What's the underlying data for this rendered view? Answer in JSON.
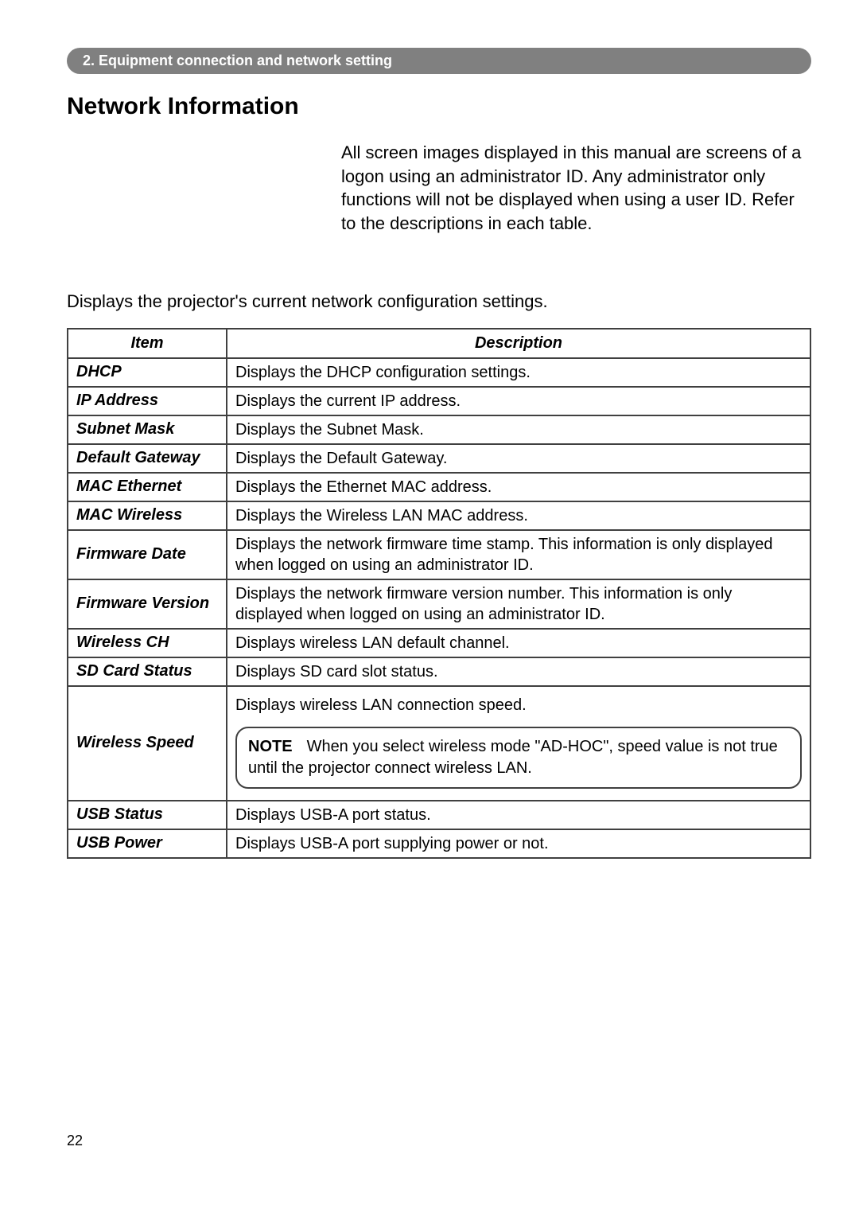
{
  "section_header": "2. Equipment connection and network setting",
  "title": "Network Information",
  "intro": "All screen images displayed in this manual are screens of a logon using an administrator ID. Any administrator only functions will not be displayed when using a user ID. Refer to the descriptions in each table.",
  "subtitle": "Displays the projector's current network configuration settings.",
  "table": {
    "headers": {
      "item": "Item",
      "description": "Description"
    },
    "rows": [
      {
        "item": "DHCP",
        "description": "Displays the DHCP configuration settings."
      },
      {
        "item": "IP Address",
        "description": "Displays the current IP address."
      },
      {
        "item": "Subnet Mask",
        "description": "Displays the Subnet Mask."
      },
      {
        "item": "Default Gateway",
        "description": "Displays the Default Gateway."
      },
      {
        "item": "MAC Ethernet",
        "description": "Displays the Ethernet MAC address."
      },
      {
        "item": "MAC Wireless",
        "description": "Displays the Wireless LAN MAC address."
      },
      {
        "item": "Firmware Date",
        "description": "Displays the network firmware time stamp. This information is only displayed when logged on using an administrator ID."
      },
      {
        "item": "Firmware Version",
        "description": "Displays the network firmware version number. This information is only displayed when logged on using an administrator ID."
      },
      {
        "item": "Wireless CH",
        "description": "Displays wireless LAN default channel."
      },
      {
        "item": "SD Card Status",
        "description": "Displays SD card slot status."
      },
      {
        "item": "Wireless Speed",
        "description": "Displays wireless LAN connection speed.",
        "note_label": "NOTE",
        "note": "When you select wireless mode \"AD-HOC\", speed value is not true until the projector connect wireless LAN."
      },
      {
        "item": "USB Status",
        "description": "Displays USB-A port status."
      },
      {
        "item": "USB Power",
        "description": "Displays USB-A port supplying power or not."
      }
    ]
  },
  "page_number": "22"
}
